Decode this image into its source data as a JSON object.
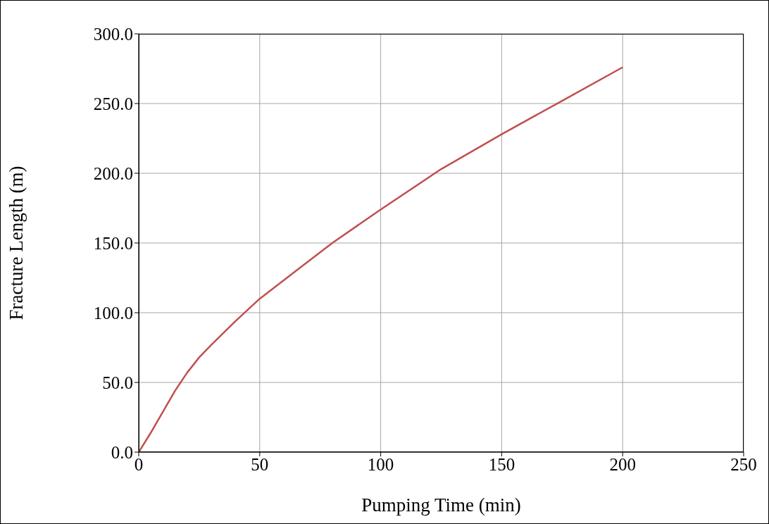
{
  "chart_data": {
    "type": "line",
    "xlabel": "Pumping Time (min)",
    "ylabel": "Fracture Length (m)",
    "x": [
      0,
      5,
      10,
      15,
      20,
      25,
      30,
      40,
      50,
      65,
      80,
      100,
      125,
      150,
      175,
      200
    ],
    "series": [
      {
        "color": "#c0504d",
        "values": [
          0,
          14,
          29,
          44,
          57,
          68,
          77,
          94,
          110,
          130,
          150,
          174,
          203,
          228,
          252,
          276
        ]
      }
    ],
    "xlim": [
      0,
      250
    ],
    "xticks": [
      0,
      50,
      100,
      150,
      200,
      250
    ],
    "ylim": [
      0,
      300
    ],
    "yticks": [
      {
        "value": 0,
        "label": "0.0"
      },
      {
        "value": 50,
        "label": "50.0"
      },
      {
        "value": 100,
        "label": "100.0"
      },
      {
        "value": 150,
        "label": "150.0"
      },
      {
        "value": 200,
        "label": "200.0"
      },
      {
        "value": 250,
        "label": "250.0"
      },
      {
        "value": 300,
        "label": "300.0"
      }
    ],
    "grid": true,
    "marker": "none",
    "line_style": "solid"
  }
}
